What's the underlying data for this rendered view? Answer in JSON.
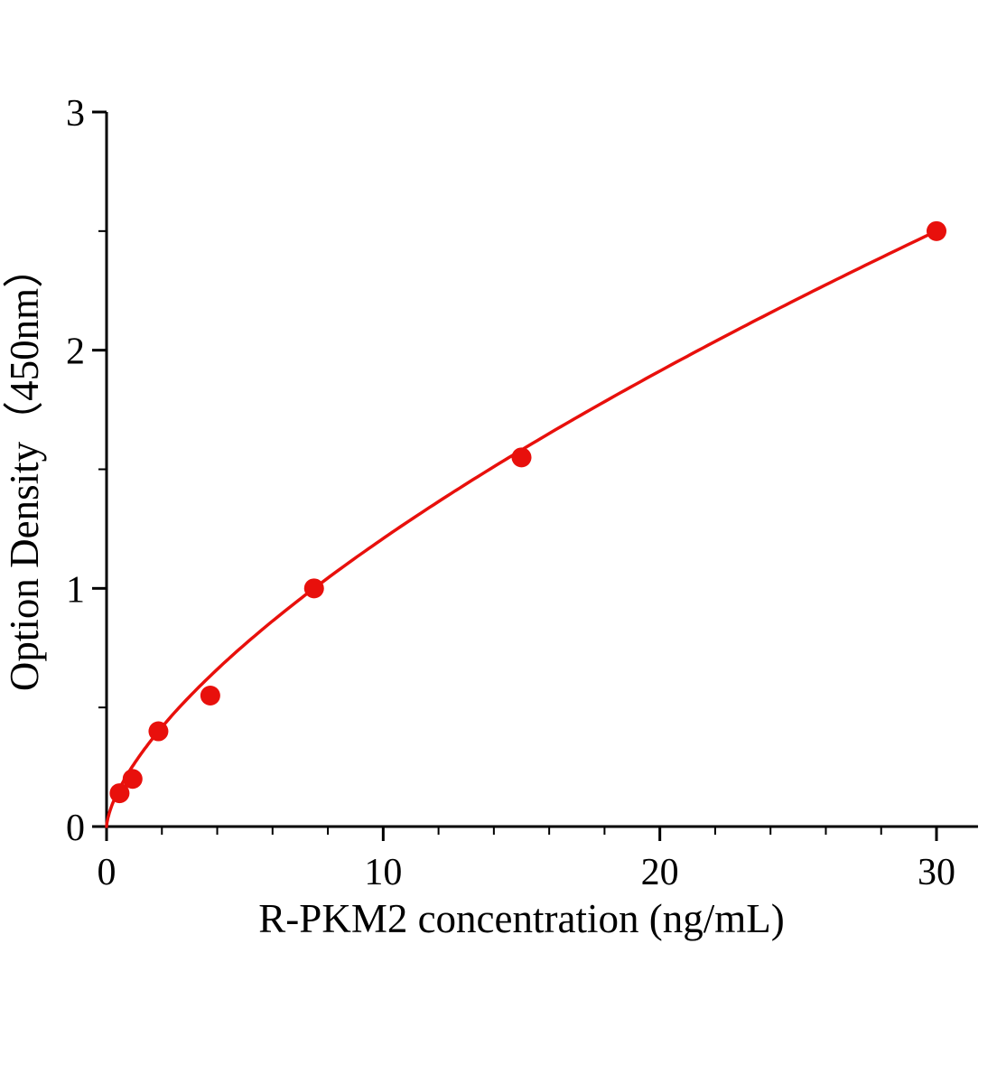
{
  "chart_data": {
    "type": "scatter",
    "title": "",
    "xlabel": "R-PKM2 concentration (ng/mL)",
    "ylabel": "Option Density（450nm）",
    "x": [
      0.47,
      0.94,
      1.875,
      3.75,
      7.5,
      15,
      30
    ],
    "y": [
      0.14,
      0.2,
      0.4,
      0.55,
      1.0,
      1.55,
      2.5
    ],
    "xlim": [
      0,
      31.5
    ],
    "ylim": [
      0,
      3
    ],
    "xticks": [
      0,
      10,
      20,
      30
    ],
    "yticks": [
      0,
      1,
      2,
      3
    ],
    "x_minor_step": 2,
    "y_minor_step": 0.5,
    "fit_curve": {
      "type": "power",
      "a": 0.264,
      "b": 0.661,
      "x_start": 0,
      "x_end": 30
    },
    "point_color": "#e8100c",
    "line_color": "#e8100c",
    "axis_color": "#000000",
    "grid": false,
    "legend": "none"
  }
}
